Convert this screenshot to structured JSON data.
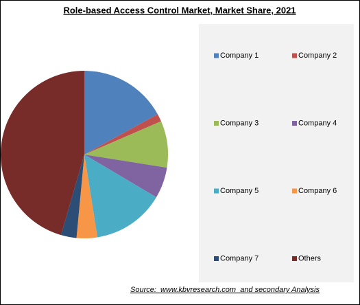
{
  "chart_data": {
    "type": "pie",
    "title": "Role-based Access Control Market, Market Share, 2021",
    "categories": [
      "Company 1",
      "Company 2",
      "Company 3",
      "Company 4",
      "Company 5",
      "Company 6",
      "Company 7",
      "Others"
    ],
    "values": [
      17,
      1.5,
      9,
      6,
      14,
      4,
      3,
      45.5
    ],
    "colors": [
      "#4f81bd",
      "#c0504d",
      "#9bbb59",
      "#8064a2",
      "#4bacc6",
      "#f79646",
      "#2c4d75",
      "#772c2a"
    ],
    "source": "Source:  www.kbvresearch.com  and secondary Analysis"
  }
}
